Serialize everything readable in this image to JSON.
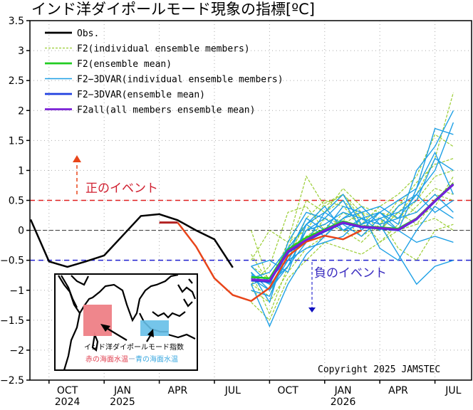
{
  "chart_data": {
    "type": "line",
    "title": "インド洋ダイポールモード現象の指標[ºC]",
    "ylim": [
      -2.5,
      3.5
    ],
    "yticks": [
      "3.5",
      "3",
      "2.5",
      "2",
      "1.5",
      "1",
      "0.5",
      "0",
      "-0.5",
      "-1",
      "-1.5",
      "-2",
      "-2.5"
    ],
    "x_start": "2024-08",
    "x_end": "2026-07",
    "xtick_labels": [
      {
        "month": "OCT",
        "year": "2024",
        "index": 2
      },
      {
        "month": "JAN",
        "year": "2025",
        "index": 5
      },
      {
        "month": "APR",
        "year": "",
        "index": 8
      },
      {
        "month": "JUL",
        "year": "",
        "index": 11
      },
      {
        "month": "OCT",
        "year": "",
        "index": 14
      },
      {
        "month": "JAN",
        "year": "2026",
        "index": 17
      },
      {
        "month": "APR",
        "year": "",
        "index": 20
      },
      {
        "month": "JUL",
        "year": "",
        "index": 23
      }
    ],
    "grid": true,
    "legend_placement": "top-left",
    "thresholds": {
      "positive": 0.5,
      "negative": -0.5
    },
    "colors": {
      "obs": "#000000",
      "f2_members": "#9acd32",
      "f2_mean": "#22cc22",
      "f2_3dvar_members": "#1ea0e6",
      "f2_3dvar_mean": "#2040e0",
      "f2all_mean": "#7a1fd6",
      "latest": "#e8451a",
      "latest_dark": "#b22222",
      "positive": "#e02020",
      "negative": "#2020d0"
    },
    "legend": [
      {
        "key": "obs",
        "label": "Obs.",
        "style": "solid"
      },
      {
        "key": "f2_members",
        "label": "F2(individual ensemble members)",
        "style": "dashed"
      },
      {
        "key": "f2_mean",
        "label": "F2(ensemble mean)",
        "style": "solid"
      },
      {
        "key": "f2_3dvar_members",
        "label": "F2−3DVAR(individual ensemble members)",
        "style": "solid"
      },
      {
        "key": "f2_3dvar_mean",
        "label": "F2−3DVAR(ensemble mean)",
        "style": "solid"
      },
      {
        "key": "f2all_mean",
        "label": "F2all(all members ensemble mean)",
        "style": "solid"
      }
    ],
    "series": {
      "obs": {
        "start": "2024-08",
        "values": [
          0.18,
          -0.52,
          -0.61,
          -0.52,
          -0.42,
          -0.09,
          0.24,
          0.27,
          0.17,
          0.0,
          -0.15,
          -0.62
        ]
      },
      "latest_dark": {
        "start": "2025-03",
        "values": [
          0.13,
          0.13
        ]
      },
      "latest": {
        "start": "2025-04",
        "values": [
          0.13,
          -0.27,
          -0.8,
          -1.08,
          -1.18,
          -0.96,
          -0.43,
          -0.19,
          -0.09,
          -0.15,
          0.0
        ]
      },
      "f2_members": {
        "start": "2025-08",
        "values": [
          [
            -0.4,
            -0.9,
            -0.3,
            0.5,
            0.3,
            0.7,
            0.4,
            0.3,
            0.2,
            0.5,
            0.9,
            1.0
          ],
          [
            -0.7,
            -1.4,
            -0.6,
            -0.2,
            0.2,
            0.1,
            0.3,
            0.0,
            0.3,
            0.6,
            1.2,
            2.3
          ],
          [
            -0.9,
            -0.6,
            0.3,
            0.4,
            0.0,
            0.2,
            -0.1,
            0.1,
            0.5,
            0.3,
            0.6,
            0.5
          ],
          [
            -0.5,
            0.0,
            -0.2,
            0.0,
            0.45,
            0.6,
            0.3,
            0.2,
            -0.3,
            -0.5,
            0.0,
            0.1
          ],
          [
            -1.0,
            -1.2,
            -0.7,
            -0.3,
            -0.1,
            0.3,
            0.1,
            0.4,
            0.6,
            0.9,
            1.6,
            1.4
          ],
          [
            -0.8,
            -1.0,
            -0.4,
            0.1,
            0.3,
            0.5,
            0.2,
            -0.2,
            0.0,
            0.2,
            0.4,
            0.9
          ],
          [
            -1.2,
            -1.5,
            -0.8,
            -0.5,
            -0.2,
            -0.3,
            -0.4,
            -0.2,
            0.1,
            0.4,
            0.7,
            0.6
          ],
          [
            -0.6,
            -0.8,
            -0.5,
            0.2,
            0.5,
            0.4,
            0.1,
            0.0,
            0.3,
            0.1,
            0.2,
            0.0
          ],
          [
            0.0,
            -0.9,
            -0.2,
            0.9,
            0.4,
            0.6,
            0.2,
            0.3,
            0.0,
            0.1,
            0.5,
            0.8
          ],
          [
            -0.9,
            -1.1,
            -0.3,
            -0.1,
            0.1,
            0.0,
            -0.2,
            0.1,
            0.4,
            0.8,
            1.1,
            1.2
          ]
        ]
      },
      "f2_3dvar_members": {
        "start": "2025-08",
        "values": [
          [
            -0.6,
            -0.5,
            -0.7,
            0.1,
            0.3,
            0.6,
            0.1,
            0.2,
            0.0,
            0.7,
            1.7,
            1.6
          ],
          [
            -0.9,
            -1.6,
            -0.9,
            -0.4,
            -0.1,
            0.2,
            0.4,
            0.1,
            -0.4,
            -0.9,
            -0.6,
            -0.5
          ],
          [
            -0.7,
            -1.0,
            -0.5,
            0.0,
            0.2,
            0.5,
            0.0,
            0.3,
            0.1,
            1.0,
            1.4,
            2.0
          ],
          [
            -0.8,
            -0.7,
            -0.3,
            0.1,
            -0.1,
            0.2,
            0.3,
            0.4,
            0.2,
            0.6,
            1.0,
            1.8
          ],
          [
            -0.6,
            -0.9,
            -0.6,
            -0.2,
            0.3,
            0.1,
            -0.1,
            0.2,
            0.3,
            0.5,
            1.2,
            1.0
          ],
          [
            -1.0,
            -1.1,
            -0.4,
            0.2,
            0.0,
            0.4,
            0.3,
            -0.3,
            -0.5,
            0.0,
            0.4,
            0.2
          ],
          [
            -0.9,
            -0.8,
            -0.5,
            -0.3,
            -0.2,
            -0.1,
            0.2,
            0.0,
            0.4,
            0.6,
            0.3,
            0.5
          ],
          [
            -0.7,
            -1.2,
            -0.2,
            0.3,
            0.2,
            0.0,
            0.1,
            0.3,
            0.0,
            -0.2,
            -0.1,
            -0.2
          ],
          [
            -0.8,
            -1.0,
            -0.6,
            0.0,
            0.1,
            0.3,
            0.2,
            0.1,
            0.2,
            0.3,
            0.6,
            0.3
          ],
          [
            -0.75,
            -0.9,
            -0.3,
            0.1,
            0.4,
            0.0,
            0.2,
            0.3,
            0.5,
            0.7,
            1.3,
            0.6
          ]
        ]
      },
      "f2_mean": {
        "start": "2025-08",
        "values": [
          -0.78,
          -0.8,
          -0.32,
          -0.12,
          0.02,
          0.15,
          0.07,
          0.05,
          0.03,
          0.2,
          0.5,
          0.78
        ]
      },
      "f2_3dvar_mean": {
        "start": "2025-08",
        "values": [
          -0.84,
          -0.86,
          -0.37,
          -0.18,
          -0.02,
          0.12,
          0.05,
          0.03,
          0.0,
          0.18,
          0.48,
          0.76
        ]
      },
      "f2all_mean": {
        "start": "2025-08",
        "values": [
          -0.82,
          -0.84,
          -0.35,
          -0.16,
          0.0,
          0.13,
          0.06,
          0.04,
          0.01,
          0.19,
          0.49,
          0.77
        ]
      }
    },
    "annotations": {
      "positive_event": "正のイベント",
      "negative_event": "負のイベント",
      "copyright": "Copyright 2025 JAMSTEC"
    },
    "inset": {
      "caption": "インド洋ダイポールモード指数",
      "formula_red": "赤の海面水温",
      "formula_minus": "ー",
      "formula_blue": "青の海面水温",
      "red_box_color": "#ee7f86",
      "blue_box_color": "#66bfe8"
    }
  }
}
